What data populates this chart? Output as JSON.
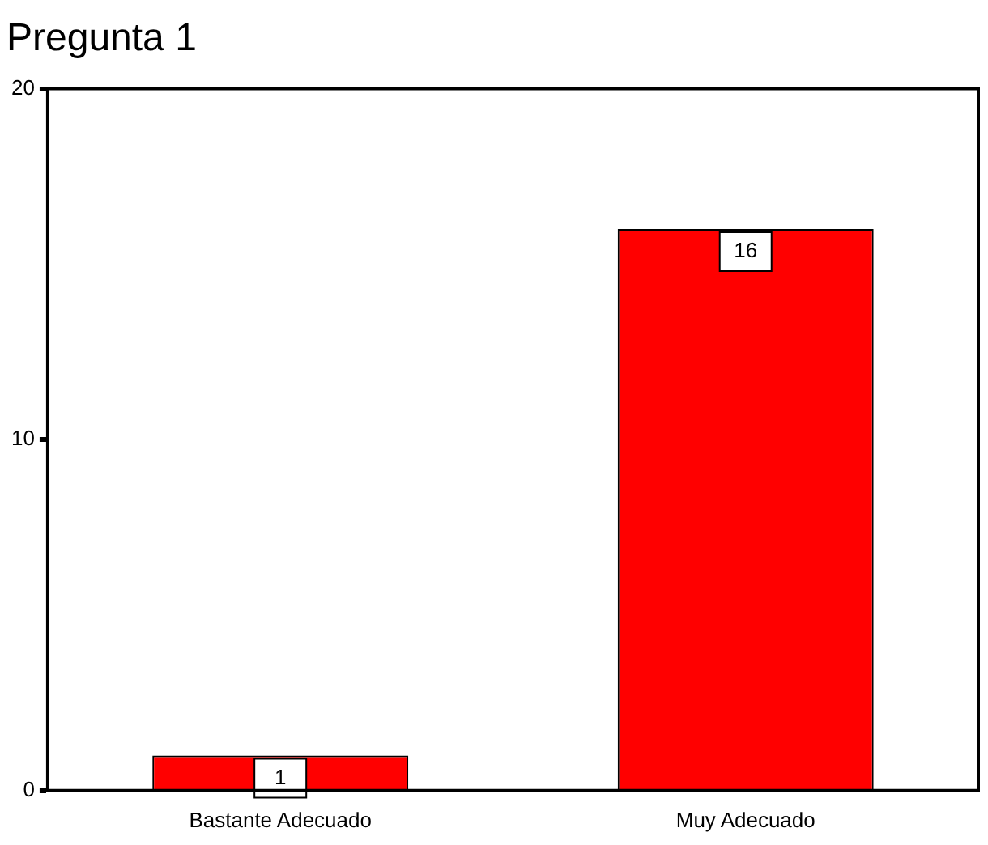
{
  "chart_data": {
    "type": "bar",
    "title": "Pregunta 1",
    "categories": [
      "Bastante Adecuado",
      "Muy Adecuado"
    ],
    "values": [
      1,
      16
    ],
    "color": "#ff0000",
    "ylim": [
      0,
      20
    ],
    "yticks": [
      0,
      10,
      20
    ],
    "grid": false,
    "legend": false,
    "data_labels": true
  }
}
